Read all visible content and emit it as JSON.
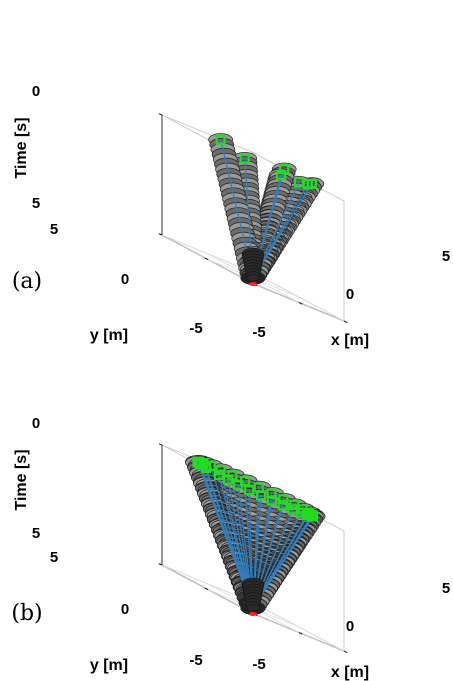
{
  "chart_data": [
    {
      "panel_label": "(a)",
      "type": "3d-trajectory",
      "xlabel": "x [m]",
      "ylabel": "y [m]",
      "zlabel": "Time [s]",
      "xlim": [
        -5,
        5
      ],
      "ylim": [
        -5,
        5
      ],
      "zlim": [
        0,
        5
      ],
      "x_ticks": [
        "-5",
        "0",
        "5"
      ],
      "y_ticks": [
        "-5",
        "0",
        "5"
      ],
      "z_ticks": [
        "0",
        "5"
      ],
      "grid": true,
      "common_goal": [
        0,
        0,
        5
      ],
      "start_positions": [
        [
          -2.0,
          -5.0
        ],
        [
          -4.5,
          -3.5
        ],
        [
          0.0,
          -5.0
        ],
        [
          2.5,
          -3.5
        ],
        [
          5.0,
          -1.5
        ],
        [
          5.0,
          1.5
        ],
        [
          1.0,
          4.5
        ]
      ],
      "colors": {
        "robot_body": "#2a2a2a",
        "ring": "#a9a9a9",
        "path": "#2f7fc1",
        "start_marker": "#22dd22",
        "goal_marker": "#ff2020"
      }
    },
    {
      "panel_label": "(b)",
      "type": "3d-trajectory",
      "xlabel": "x [m]",
      "ylabel": "y [m]",
      "zlabel": "Time [s]",
      "xlim": [
        -5,
        5
      ],
      "ylim": [
        -5,
        5
      ],
      "zlim": [
        0,
        5
      ],
      "x_ticks": [
        "-5",
        "0",
        "5"
      ],
      "y_ticks": [
        "-5",
        "0",
        "5"
      ],
      "z_ticks": [
        "0",
        "5"
      ],
      "grid": true,
      "common_goal": [
        0,
        0,
        5
      ],
      "start_positions": [
        [
          -4.6,
          -0.8
        ],
        [
          -4.4,
          -1.6
        ],
        [
          -4.1,
          -2.4
        ],
        [
          -3.6,
          -3.1
        ],
        [
          -3.0,
          -3.8
        ],
        [
          -2.2,
          -4.2
        ],
        [
          -1.3,
          -4.5
        ],
        [
          -0.3,
          -4.6
        ],
        [
          0.7,
          -4.5
        ],
        [
          1.6,
          -4.3
        ],
        [
          2.5,
          -3.9
        ],
        [
          3.3,
          -3.3
        ],
        [
          3.9,
          -2.6
        ],
        [
          4.4,
          -1.8
        ],
        [
          4.6,
          -0.9
        ],
        [
          4.6,
          0.0
        ],
        [
          4.4,
          1.0
        ],
        [
          4.0,
          1.9
        ],
        [
          3.4,
          2.7
        ],
        [
          2.6,
          3.4
        ],
        [
          1.7,
          3.9
        ],
        [
          0.7,
          4.2
        ],
        [
          -0.3,
          4.3
        ],
        [
          -1.3,
          4.1
        ],
        [
          -2.2,
          3.7
        ],
        [
          -3.0,
          3.1
        ],
        [
          -3.7,
          2.4
        ],
        [
          -4.2,
          1.6
        ],
        [
          -4.5,
          0.7
        ]
      ],
      "colors": {
        "robot_body": "#2a2a2a",
        "ring": "#a9a9a9",
        "path": "#2f7fc1",
        "start_marker": "#22dd22",
        "goal_marker": "#ff2020"
      }
    }
  ]
}
